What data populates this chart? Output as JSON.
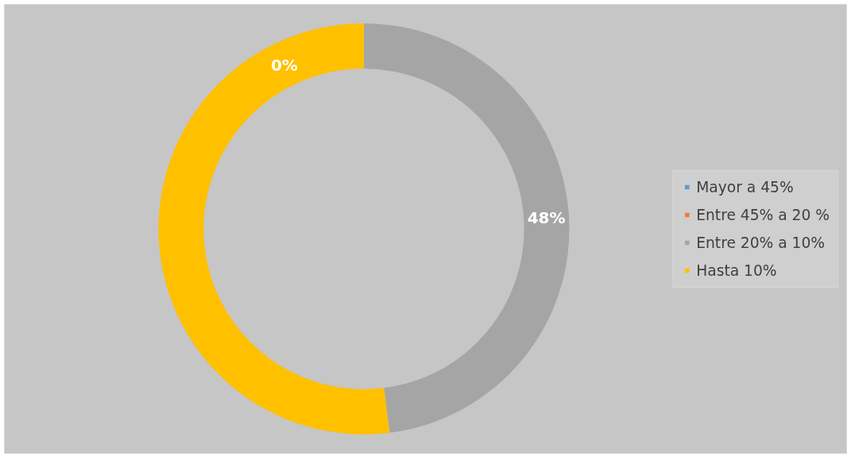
{
  "chart_data": {
    "type": "donut",
    "categories": [
      "Mayor a 45%",
      "Entre 45% a 20 %",
      "Entre 20% a 10%",
      "Hasta 10%"
    ],
    "values": [
      0,
      0,
      48,
      52
    ],
    "colors": [
      "#5b9bd5",
      "#ed7d31",
      "#a5a5a5",
      "#ffc000"
    ],
    "value_labels": [
      "0%",
      null,
      "48%",
      null
    ],
    "legend": "right"
  }
}
